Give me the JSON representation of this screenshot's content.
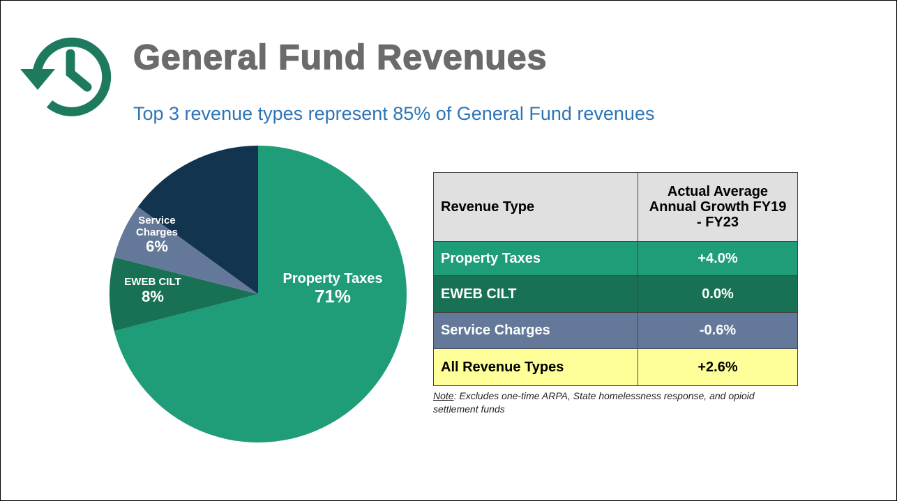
{
  "chart_data": {
    "type": "pie",
    "title": "General Fund Revenues",
    "subtitle": "Top 3 revenue types represent 85% of General Fund revenues",
    "categories": [
      "Property Taxes",
      "EWEB CILT",
      "Service Charges",
      null
    ],
    "values": [
      71,
      8,
      6,
      15
    ],
    "value_labels": [
      "71%",
      "8%",
      "6%",
      null
    ],
    "colors": [
      "#1f9c78",
      "#187154",
      "#64799a",
      "#12344f"
    ]
  },
  "table": {
    "header": [
      "Revenue Type",
      "Actual Average Annual Growth FY19 - FY23"
    ],
    "rows": [
      [
        "Property Taxes",
        "+4.0%"
      ],
      [
        "EWEB CILT",
        "0.0%"
      ],
      [
        "Service Charges",
        "-0.6%"
      ],
      [
        "All Revenue Types",
        "+2.6%"
      ]
    ],
    "row_colors": [
      "#1f9c78",
      "#187154",
      "#64799a",
      "#ffff99"
    ]
  },
  "note": {
    "label": "Note",
    "text": ": Excludes one-time ARPA, State homelessness response, and opioid settlement funds"
  }
}
